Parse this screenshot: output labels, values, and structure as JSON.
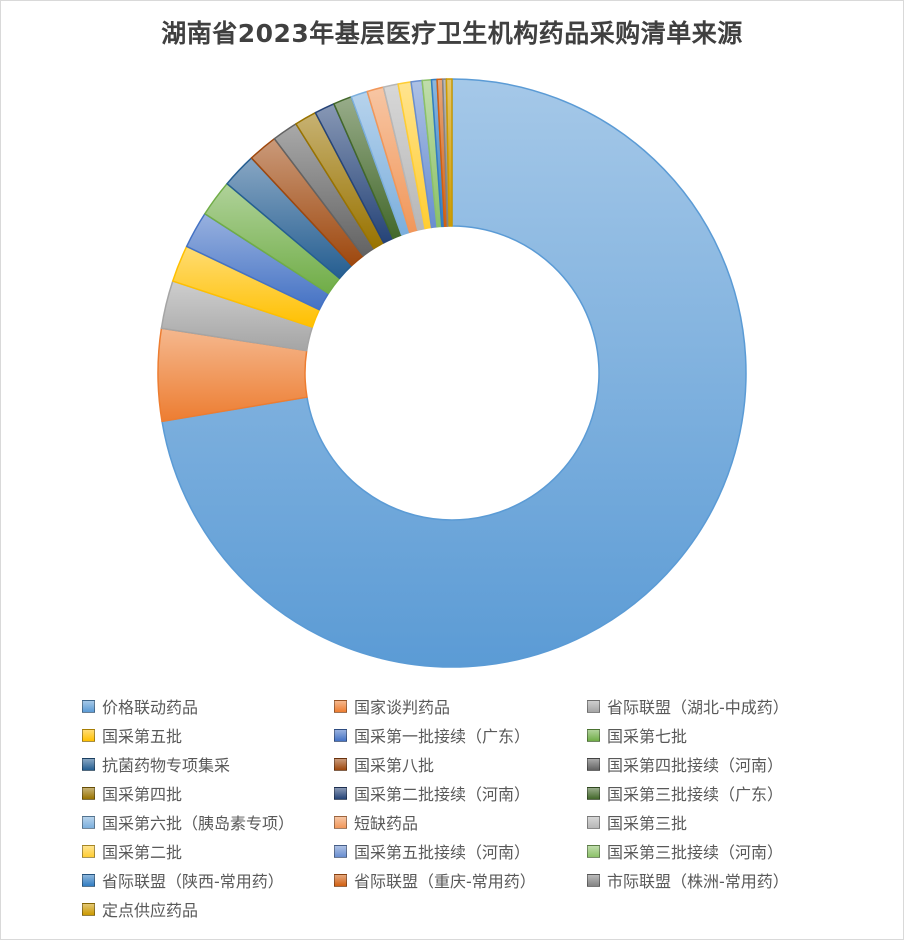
{
  "chart_data": {
    "type": "pie",
    "variant": "doughnut",
    "title": "湖南省2023年基层医疗卫生机构药品采购清单来源",
    "legend_position": "bottom",
    "series": [
      {
        "name": "价格联动药品",
        "value": 71.5,
        "color": "#5b9bd5"
      },
      {
        "name": "国家谈判药品",
        "value": 5.0,
        "color": "#ed7d31"
      },
      {
        "name": "省际联盟（湖北-中成药）",
        "value": 2.6,
        "color": "#a5a5a5"
      },
      {
        "name": "国采第五批",
        "value": 2.0,
        "color": "#ffc000"
      },
      {
        "name": "国采第一批接续（广东）",
        "value": 2.0,
        "color": "#4472c4"
      },
      {
        "name": "国采第七批",
        "value": 2.0,
        "color": "#70ad47"
      },
      {
        "name": "抗菌药物专项集采",
        "value": 1.9,
        "color": "#255e91"
      },
      {
        "name": "国采第八批",
        "value": 1.6,
        "color": "#9e480e"
      },
      {
        "name": "国采第四批接续（河南）",
        "value": 1.4,
        "color": "#636363"
      },
      {
        "name": "国采第四批",
        "value": 1.2,
        "color": "#997300"
      },
      {
        "name": "国采第二批接续（河南）",
        "value": 1.1,
        "color": "#264478"
      },
      {
        "name": "国采第三批接续（广东）",
        "value": 1.0,
        "color": "#43682b"
      },
      {
        "name": "国采第六批（胰岛素专项）",
        "value": 0.9,
        "color": "#7cafdd"
      },
      {
        "name": "短缺药品",
        "value": 0.9,
        "color": "#f1975a"
      },
      {
        "name": "国采第三批",
        "value": 0.8,
        "color": "#b7b7b7"
      },
      {
        "name": "国采第二批",
        "value": 0.7,
        "color": "#ffcd33"
      },
      {
        "name": "国采第五批接续（河南）",
        "value": 0.6,
        "color": "#698ed0"
      },
      {
        "name": "国采第三批接续（河南）",
        "value": 0.5,
        "color": "#8cc168"
      },
      {
        "name": "省际联盟（陕西-常用药）",
        "value": 0.3,
        "color": "#327dc2"
      },
      {
        "name": "省际联盟（重庆-常用药）",
        "value": 0.3,
        "color": "#d26012"
      },
      {
        "name": "市际联盟（株洲-常用药）",
        "value": 0.2,
        "color": "#848484"
      },
      {
        "name": "定点供应药品",
        "value": 0.3,
        "color": "#cc9a00"
      }
    ]
  }
}
